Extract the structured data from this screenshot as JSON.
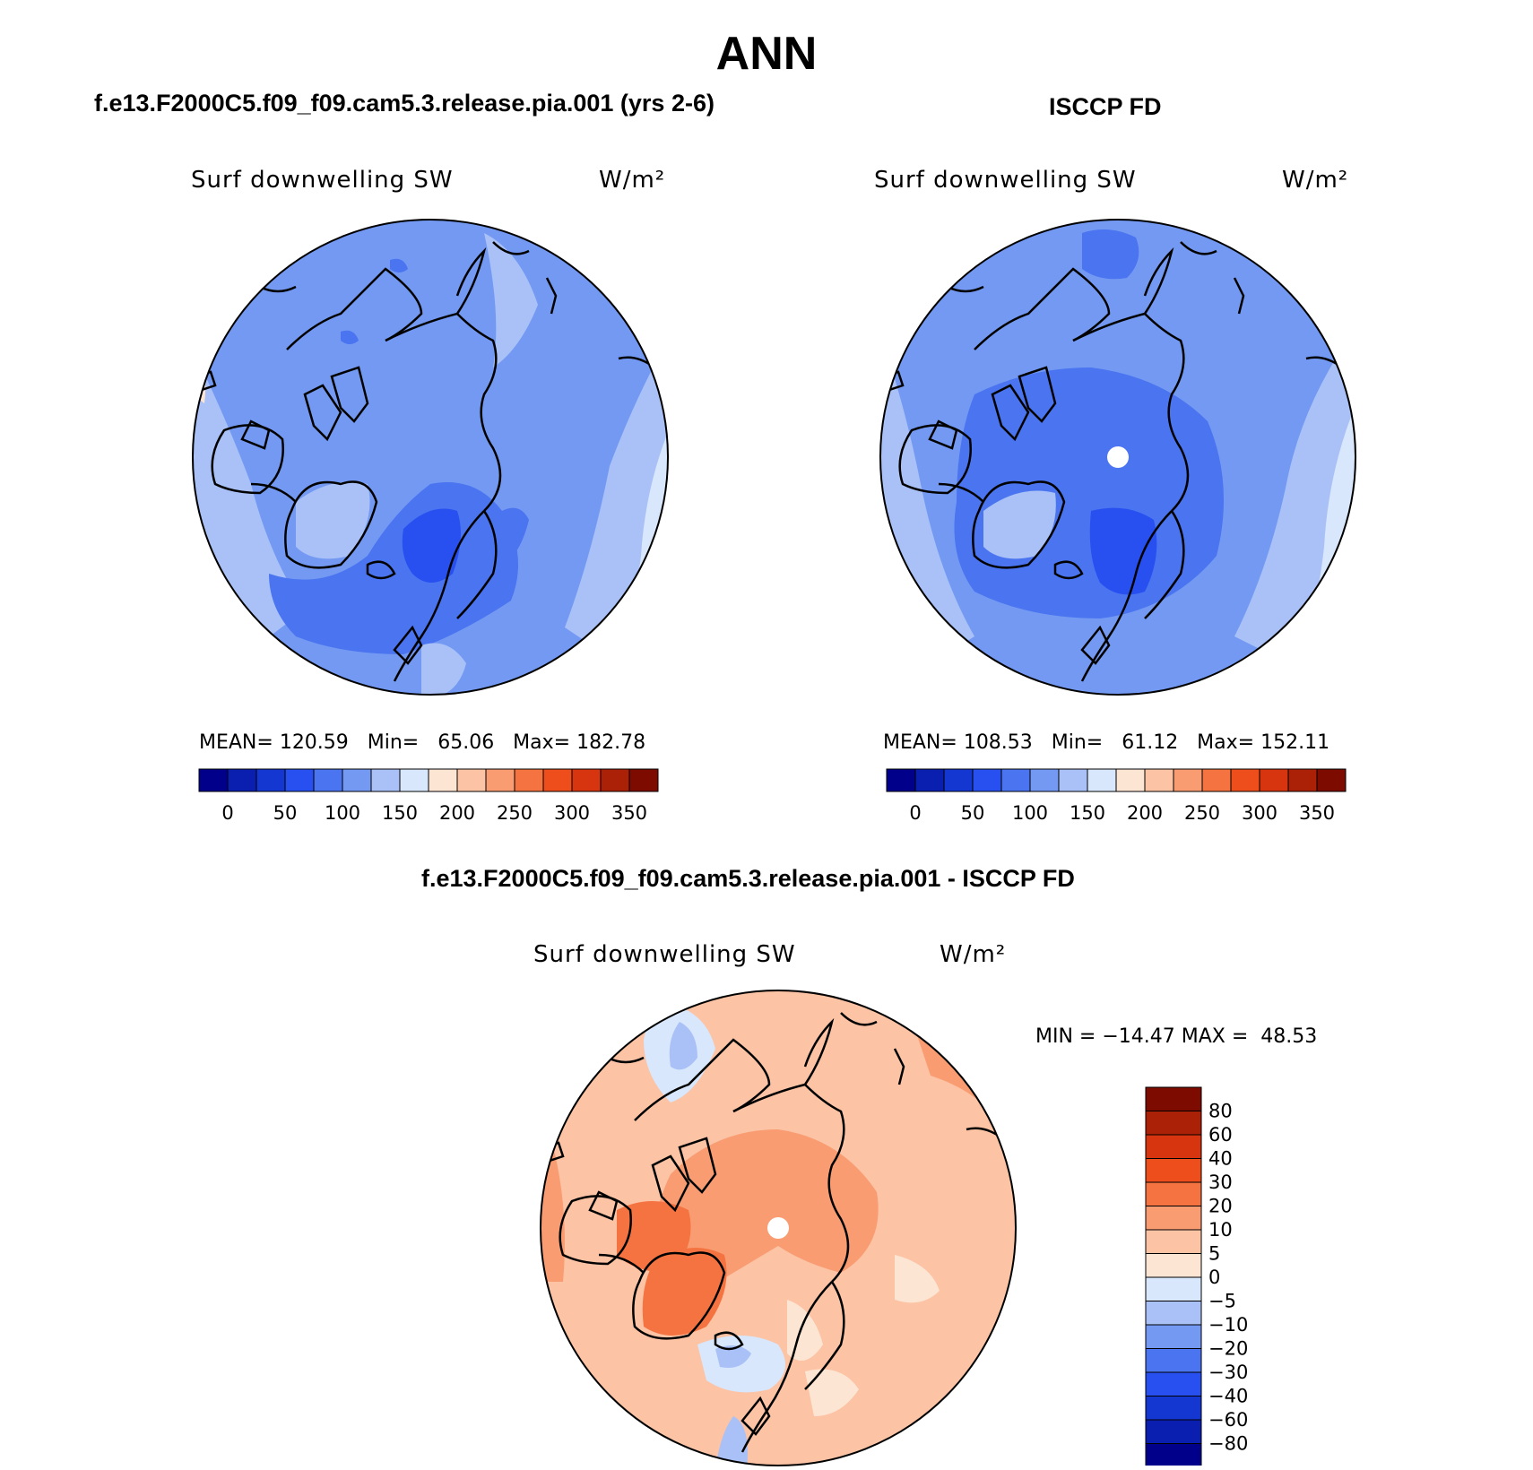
{
  "title": "ANN",
  "panels": [
    {
      "case_title": "f.e13.F2000C5.f09_f09.cam5.3.release.pia.001 (yrs 2-6)",
      "variable": "Surf downwelling SW",
      "units": "W/m²",
      "stats": "MEAN= 120.59   Min=   65.06   Max= 182.78"
    },
    {
      "case_title": "ISCCP FD",
      "variable": "Surf downwelling SW",
      "units": "W/m²",
      "stats": "MEAN= 108.53   Min=   61.12   Max= 152.11"
    },
    {
      "case_title": "f.e13.F2000C5.f09_f09.cam5.3.release.pia.001 - ISCCP FD",
      "variable": "Surf downwelling SW",
      "units": "W/m²",
      "stats": "MIN = −14.47 MAX =  48.53"
    }
  ],
  "colorbar_abs": {
    "colors": [
      "#00008b",
      "#0a1fb0",
      "#1437d2",
      "#2850f0",
      "#4a74f0",
      "#7399f2",
      "#a9c1f7",
      "#d8e7fb",
      "#fde5d4",
      "#fcc3a5",
      "#f99c72",
      "#f57340",
      "#ed4e1c",
      "#d63510",
      "#ab2108",
      "#7d0b00"
    ],
    "tick_labels": [
      "0",
      "50",
      "100",
      "150",
      "200",
      "250",
      "300",
      "350"
    ]
  },
  "colorbar_diff": {
    "colors": [
      "#00008b",
      "#0a1fb0",
      "#1437d2",
      "#2850f0",
      "#4a74f0",
      "#7399f2",
      "#a9c1f7",
      "#d8e7fb",
      "#fde5d4",
      "#fcc3a5",
      "#f99c72",
      "#f57340",
      "#ed4e1c",
      "#d63510",
      "#ab2108",
      "#7d0b00"
    ],
    "tick_labels": [
      "−80",
      "−60",
      "−40",
      "−30",
      "−20",
      "−10",
      "−5",
      "0",
      "5",
      "10",
      "20",
      "30",
      "40",
      "60",
      "80"
    ]
  }
}
